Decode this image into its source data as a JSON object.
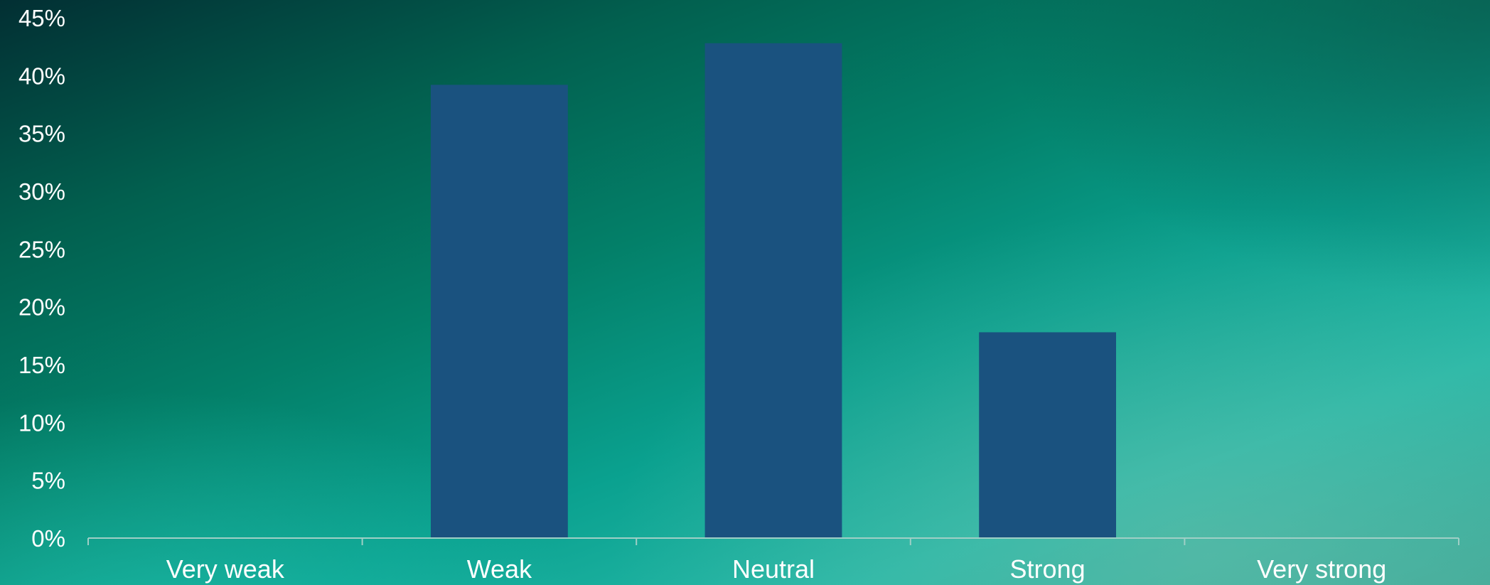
{
  "chart_data": {
    "type": "bar",
    "categories": [
      "Very weak",
      "Weak",
      "Neutral",
      "Strong",
      "Very strong"
    ],
    "values": [
      0,
      39.2,
      42.8,
      17.8,
      0
    ],
    "ylim": [
      0,
      45
    ],
    "yticks": [
      "0%",
      "5%",
      "10%",
      "15%",
      "20%",
      "25%",
      "30%",
      "35%",
      "40%",
      "45%"
    ],
    "grid": false,
    "legend": "none",
    "bar_color": "#1a527f",
    "axis_color": "#9fcfc6"
  }
}
